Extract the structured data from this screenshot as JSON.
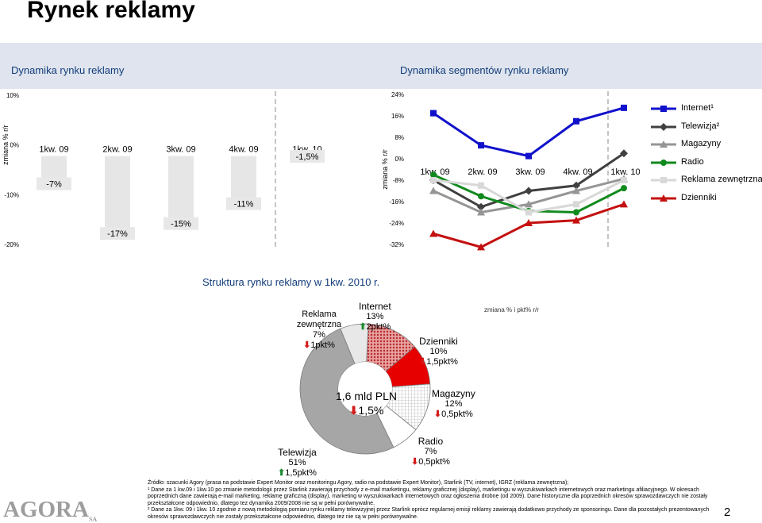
{
  "title": "Rynek reklamy",
  "sections": {
    "left": "Dynamika rynku reklamy",
    "right": "Dynamika segmentów rynku reklamy",
    "bottom": "Struktura rynku reklamy w 1kw. 2010 r."
  },
  "colors": {
    "band": "#dfe4ee",
    "section_title": "#123d7a",
    "bar": "#e6e6e6",
    "bar_label_bg": "#e8e8e8",
    "up_arrow": "#1b8a2e",
    "down_arrow": "#d41a1a"
  },
  "chart_data": [
    {
      "type": "bar",
      "title": "Dynamika rynku reklamy",
      "ylabel": "zmiana % r/r",
      "ylim": [
        -20,
        10
      ],
      "yticks": [
        "10%",
        "0%",
        "-10%",
        "-20%"
      ],
      "categories": [
        "1kw. 09",
        "2kw. 09",
        "3kw. 09",
        "4kw. 09",
        "1kw. 10"
      ],
      "values": [
        -7,
        -17,
        -15,
        -11,
        -1.5
      ],
      "data_labels": [
        "-7%",
        "-17%",
        "-15%",
        "-11%",
        "-1,5%"
      ]
    },
    {
      "type": "line",
      "title": "Dynamika segmentów rynku reklamy",
      "ylabel": "zmiana % r/r",
      "ylim": [
        -32,
        24
      ],
      "yticks": [
        "24%",
        "16%",
        "8%",
        "0%",
        "-8%",
        "-16%",
        "-24%",
        "-32%"
      ],
      "categories": [
        "1kw. 09",
        "2kw. 09",
        "3kw. 09",
        "4kw. 09",
        "1kw. 10"
      ],
      "legend_position": "right",
      "series": [
        {
          "name": "Internet¹",
          "color": "#1111cc",
          "marker": "square",
          "values": [
            17,
            5,
            1,
            14,
            19
          ]
        },
        {
          "name": "Telewizja²",
          "color": "#404040",
          "marker": "diamond",
          "values": [
            -8,
            -18,
            -12,
            -10,
            2
          ]
        },
        {
          "name": "Magazyny",
          "color": "#959595",
          "marker": "triangle",
          "values": [
            -12,
            -20,
            -17,
            -12,
            -7.5
          ]
        },
        {
          "name": "Radio",
          "color": "#118a1e",
          "marker": "circle",
          "values": [
            -6,
            -14,
            -19.5,
            -20,
            -11
          ]
        },
        {
          "name": "Reklama zewnętrzna",
          "color": "#d8d8d8",
          "marker": "square",
          "values": [
            -8,
            -10,
            -20,
            -17,
            -8
          ]
        },
        {
          "name": "Dzienniki",
          "color": "#c41010",
          "marker": "triangle",
          "values": [
            -28,
            -33,
            -24,
            -23,
            -17
          ]
        }
      ]
    },
    {
      "type": "pie",
      "title": "Struktura rynku reklamy w 1kw. 2010 r.",
      "center_value": "1,6 mld PLN",
      "center_change": "1,5%",
      "center_arrow": "down",
      "note": "zmiana % i pkt% r/r",
      "slices": [
        {
          "name": "Internet",
          "share": 13,
          "share_label": "13%",
          "change": "2pkt%",
          "arrow": "up",
          "color": "#b62a2a",
          "pattern": "dots-red"
        },
        {
          "name": "Dzienniki",
          "share": 10,
          "share_label": "10%",
          "change": "1,5pkt%",
          "arrow": "down",
          "color": "#e60000",
          "pattern": "solid"
        },
        {
          "name": "Magazyny",
          "share": 12,
          "share_label": "12%",
          "change": "0,5pkt%",
          "arrow": "down",
          "color": "#f2f2f2",
          "pattern": "grid"
        },
        {
          "name": "Radio",
          "share": 7,
          "share_label": "7%",
          "change": "0,5pkt%",
          "arrow": "down",
          "color": "#ffffff",
          "pattern": "none"
        },
        {
          "name": "Telewizja",
          "share": 51,
          "share_label": "51%",
          "change": "1,5pkt%",
          "arrow": "up",
          "color": "#a6a6a6",
          "pattern": "solid"
        },
        {
          "name": "Reklama zewnętrzna",
          "share": 7,
          "share_label": "7%",
          "change": "1pkt%",
          "arrow": "down",
          "color": "#e8e8e8",
          "pattern": "solid"
        }
      ]
    }
  ],
  "footnotes": {
    "source": "Źródło: szacunki Agory (prasa na podstawie Expert Monitor oraz monitoringu Agory, radio na podstawie Expert Monitor), Starlink (TV, internet), IGRZ (reklama zewnętrzna);",
    "note1": "¹ Dane za 1 kw.09 i 1kw.10 po zmianie metodologii przez Starlink zawierają przychody z e-mail marketingu, reklamy graficznej (display), marketingu w wyszukiwarkach internetowych oraz marketingu afiliacyjnego. W okresach poprzednich dane zawierają e-mail marketing, reklamę graficzną (display), marketing w wyszukiwarkach internetowych oraz ogłoszenia drobne (od 2009). Dane historyczne dla poprzednich okresów sprawozdawczych nie zostały przekształcone odpowiednio, dlatego tez dynamika 2009/2008 nie są w pełni porównywalne.",
    "note2": "² Dane za 1kw. 09 i 1kw. 10 zgodnie z nową metodologią pomiaru rynku reklamy telewizyjnej przez Starlink oprócz regularnej emisji reklamy zawierają dodatkowo przychody ze sponsoringu. Dane dla pozostałych prezentowanych okresów sprawozdawczych nie zostały przekształcone odpowiednio, dlatego też nie są w pełni porównywalne."
  },
  "logo": {
    "text": "AGORA",
    "suffix": "SA"
  },
  "page_number": "2"
}
